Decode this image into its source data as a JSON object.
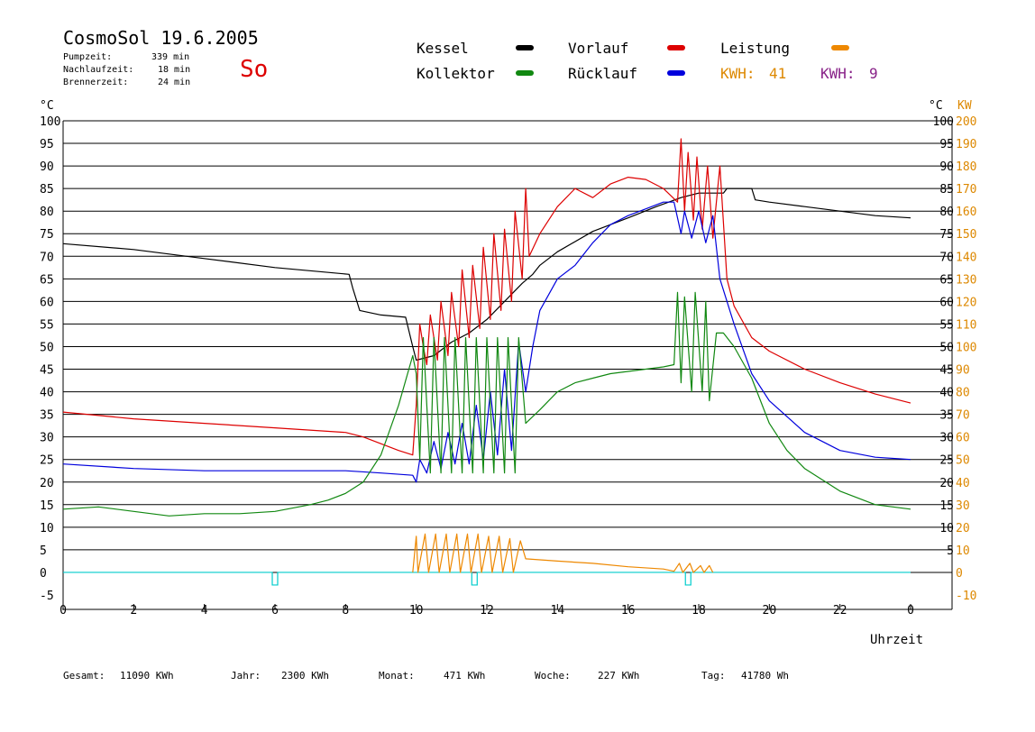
{
  "header": {
    "title": "CosmoSol 19.6.2005",
    "day": "So",
    "info": [
      {
        "label": "Pumpzeit:",
        "value": "339 min"
      },
      {
        "label": "Nachlaufzeit:",
        "value": "18 min"
      },
      {
        "label": "Brennerzeit:",
        "value": "24 min"
      }
    ]
  },
  "legend": {
    "kessel": {
      "label": "Kessel",
      "color": "#000000"
    },
    "vorlauf": {
      "label": "Vorlauf",
      "color": "#dd0000"
    },
    "leistung": {
      "label": "Leistung",
      "color": "#ee8800"
    },
    "kollektor": {
      "label": "Kollektor",
      "color": "#118811"
    },
    "ruecklauf": {
      "label": "Rücklauf",
      "color": "#0000dd"
    },
    "kwh_orange": {
      "label": "KWH:",
      "value": "41",
      "color": "#dd8800"
    },
    "kwh_purple": {
      "label": "KWH:",
      "value": "9",
      "color": "#882288"
    }
  },
  "axes": {
    "left_unit": "°C",
    "right_unit_c": "°C",
    "right_unit_kw": "KW",
    "x_label": "Uhrzeit"
  },
  "footer": [
    {
      "label": "Gesamt:",
      "value": "11090 KWh"
    },
    {
      "label": "Jahr:",
      "value": "2300 KWh"
    },
    {
      "label": "Monat:",
      "value": "471 KWh"
    },
    {
      "label": "Woche:",
      "value": "227 KWh"
    },
    {
      "label": "Tag:",
      "value": "41780 Wh"
    }
  ],
  "chart_data": {
    "type": "line",
    "xlabel": "Uhrzeit",
    "ylabel_left": "°C",
    "ylabel_right": "KW",
    "xlim": [
      0,
      24
    ],
    "ylim": [
      -5,
      100
    ],
    "ylim_kw": [
      -10,
      200
    ],
    "x_ticks": [
      "0",
      "2",
      "4",
      "6",
      "8",
      "10",
      "12",
      "14",
      "16",
      "18",
      "20",
      "22",
      "0"
    ],
    "y_ticks_left": [
      "100",
      "95",
      "90",
      "85",
      "80",
      "75",
      "70",
      "65",
      "60",
      "55",
      "50",
      "45",
      "40",
      "35",
      "30",
      "25",
      "20",
      "15",
      "10",
      "5",
      "0",
      "-5"
    ],
    "y_ticks_right_c": [
      "100",
      "95",
      "90",
      "85",
      "80",
      "75",
      "70",
      "65",
      "60",
      "55",
      "50",
      "45",
      "40",
      "35",
      "30",
      "25",
      "20",
      "15",
      "10",
      "5"
    ],
    "y_ticks_right_kw": [
      "200",
      "190",
      "180",
      "170",
      "160",
      "150",
      "140",
      "130",
      "120",
      "110",
      "100",
      "90",
      "80",
      "70",
      "60",
      "50",
      "40",
      "30",
      "20",
      "10",
      "0",
      "-10"
    ],
    "grid": true,
    "series": [
      {
        "name": "Kessel",
        "color": "#000000",
        "points": [
          [
            0,
            72.8
          ],
          [
            2,
            71.5
          ],
          [
            4,
            69.5
          ],
          [
            6,
            67.5
          ],
          [
            8.1,
            66
          ],
          [
            8.2,
            63
          ],
          [
            8.4,
            58
          ],
          [
            9,
            57
          ],
          [
            9.7,
            56.5
          ],
          [
            9.9,
            50
          ],
          [
            10,
            47
          ],
          [
            10.5,
            48
          ],
          [
            11,
            51
          ],
          [
            11.5,
            53
          ],
          [
            12,
            56
          ],
          [
            12.5,
            60
          ],
          [
            13,
            64
          ],
          [
            13.3,
            66
          ],
          [
            13.5,
            68
          ],
          [
            14,
            71
          ],
          [
            15,
            75.5
          ],
          [
            16,
            78.5
          ],
          [
            16.8,
            81
          ],
          [
            17.5,
            83
          ],
          [
            18,
            84
          ],
          [
            18.7,
            84
          ],
          [
            18.8,
            85
          ],
          [
            19.5,
            85
          ],
          [
            19.6,
            82.5
          ],
          [
            20,
            82
          ],
          [
            21,
            81
          ],
          [
            22,
            80
          ],
          [
            23,
            79
          ],
          [
            24,
            78.5
          ]
        ]
      },
      {
        "name": "Vorlauf",
        "color": "#dd0000",
        "points": [
          [
            0,
            35.5
          ],
          [
            2,
            34
          ],
          [
            4,
            33
          ],
          [
            6,
            32
          ],
          [
            8,
            31
          ],
          [
            8.5,
            30
          ],
          [
            9,
            28.5
          ],
          [
            9.5,
            27
          ],
          [
            9.9,
            26
          ],
          [
            10,
            37
          ],
          [
            10.1,
            55
          ],
          [
            10.2,
            50
          ],
          [
            10.3,
            46
          ],
          [
            10.4,
            57
          ],
          [
            10.6,
            47
          ],
          [
            10.7,
            60
          ],
          [
            10.9,
            48
          ],
          [
            11,
            62
          ],
          [
            11.2,
            50
          ],
          [
            11.3,
            67
          ],
          [
            11.5,
            52
          ],
          [
            11.6,
            68
          ],
          [
            11.8,
            54
          ],
          [
            11.9,
            72
          ],
          [
            12.1,
            56
          ],
          [
            12.2,
            75
          ],
          [
            12.4,
            58
          ],
          [
            12.5,
            76
          ],
          [
            12.7,
            60
          ],
          [
            12.8,
            80
          ],
          [
            13,
            65
          ],
          [
            13.1,
            85
          ],
          [
            13.2,
            70
          ],
          [
            13.5,
            75
          ],
          [
            14,
            81
          ],
          [
            14.5,
            85
          ],
          [
            15,
            83
          ],
          [
            15.5,
            86
          ],
          [
            16,
            87.5
          ],
          [
            16.5,
            87
          ],
          [
            17,
            85
          ],
          [
            17.4,
            82
          ],
          [
            17.5,
            96
          ],
          [
            17.6,
            80
          ],
          [
            17.7,
            93
          ],
          [
            17.85,
            78
          ],
          [
            17.95,
            92
          ],
          [
            18.1,
            76
          ],
          [
            18.25,
            90
          ],
          [
            18.4,
            74
          ],
          [
            18.6,
            90
          ],
          [
            18.8,
            65
          ],
          [
            19,
            59
          ],
          [
            19.5,
            52
          ],
          [
            20,
            49
          ],
          [
            21,
            45
          ],
          [
            22,
            42
          ],
          [
            23,
            39.5
          ],
          [
            24,
            37.5
          ]
        ]
      },
      {
        "name": "Rücklauf",
        "color": "#0000dd",
        "points": [
          [
            0,
            24
          ],
          [
            2,
            23
          ],
          [
            4,
            22.5
          ],
          [
            6,
            22.5
          ],
          [
            8,
            22.5
          ],
          [
            9,
            22
          ],
          [
            9.9,
            21.5
          ],
          [
            10,
            20
          ],
          [
            10.1,
            25
          ],
          [
            10.3,
            22
          ],
          [
            10.5,
            29
          ],
          [
            10.7,
            23
          ],
          [
            10.9,
            31
          ],
          [
            11.1,
            24
          ],
          [
            11.3,
            33
          ],
          [
            11.5,
            24
          ],
          [
            11.7,
            37
          ],
          [
            11.9,
            25
          ],
          [
            12.1,
            40
          ],
          [
            12.3,
            26
          ],
          [
            12.5,
            45
          ],
          [
            12.7,
            27
          ],
          [
            12.9,
            51
          ],
          [
            13.1,
            40
          ],
          [
            13.3,
            50
          ],
          [
            13.5,
            58
          ],
          [
            14,
            65
          ],
          [
            14.5,
            68
          ],
          [
            15,
            73
          ],
          [
            15.5,
            77
          ],
          [
            16,
            79
          ],
          [
            16.5,
            80.5
          ],
          [
            17,
            82
          ],
          [
            17.3,
            82
          ],
          [
            17.5,
            75
          ],
          [
            17.6,
            80
          ],
          [
            17.8,
            74
          ],
          [
            18,
            80
          ],
          [
            18.2,
            73
          ],
          [
            18.4,
            79
          ],
          [
            18.6,
            65
          ],
          [
            19,
            55
          ],
          [
            19.5,
            44
          ],
          [
            20,
            38
          ],
          [
            21,
            31
          ],
          [
            22,
            27
          ],
          [
            23,
            25.5
          ],
          [
            24,
            25
          ]
        ]
      },
      {
        "name": "Kollektor",
        "color": "#118811",
        "points": [
          [
            0,
            14
          ],
          [
            1,
            14.5
          ],
          [
            2,
            13.5
          ],
          [
            3,
            12.5
          ],
          [
            4,
            13
          ],
          [
            5,
            13
          ],
          [
            6,
            13.5
          ],
          [
            7,
            15
          ],
          [
            7.5,
            16
          ],
          [
            8,
            17.5
          ],
          [
            8.5,
            20
          ],
          [
            9,
            26
          ],
          [
            9.5,
            37
          ],
          [
            9.9,
            48
          ],
          [
            10,
            44
          ],
          [
            10.1,
            25
          ],
          [
            10.2,
            52
          ],
          [
            10.4,
            22
          ],
          [
            10.5,
            52
          ],
          [
            10.7,
            22
          ],
          [
            10.8,
            52
          ],
          [
            11,
            22
          ],
          [
            11.1,
            52
          ],
          [
            11.3,
            22
          ],
          [
            11.4,
            52
          ],
          [
            11.6,
            22
          ],
          [
            11.7,
            52
          ],
          [
            11.9,
            22
          ],
          [
            12,
            52
          ],
          [
            12.2,
            22
          ],
          [
            12.3,
            52
          ],
          [
            12.5,
            22
          ],
          [
            12.6,
            52
          ],
          [
            12.8,
            22
          ],
          [
            12.9,
            52
          ],
          [
            13.1,
            33
          ],
          [
            13.5,
            36
          ],
          [
            14,
            40
          ],
          [
            14.5,
            42
          ],
          [
            15,
            43
          ],
          [
            15.5,
            44
          ],
          [
            16,
            44.5
          ],
          [
            16.5,
            45
          ],
          [
            17,
            45.5
          ],
          [
            17.3,
            46
          ],
          [
            17.4,
            62
          ],
          [
            17.5,
            42
          ],
          [
            17.6,
            61
          ],
          [
            17.8,
            40
          ],
          [
            17.9,
            62
          ],
          [
            18.1,
            40
          ],
          [
            18.2,
            60
          ],
          [
            18.3,
            38
          ],
          [
            18.5,
            53
          ],
          [
            18.7,
            53
          ],
          [
            19,
            50
          ],
          [
            19.5,
            43
          ],
          [
            20,
            33
          ],
          [
            20.5,
            27
          ],
          [
            21,
            23
          ],
          [
            22,
            18
          ],
          [
            23,
            15
          ],
          [
            24,
            14
          ]
        ]
      },
      {
        "name": "Leistung",
        "color": "#ee8800",
        "axis": "kw",
        "points": [
          [
            9.9,
            0
          ],
          [
            10,
            16
          ],
          [
            10.05,
            0
          ],
          [
            10.25,
            17
          ],
          [
            10.35,
            0
          ],
          [
            10.55,
            17
          ],
          [
            10.65,
            0
          ],
          [
            10.85,
            17
          ],
          [
            10.95,
            0
          ],
          [
            11.15,
            17
          ],
          [
            11.25,
            0
          ],
          [
            11.45,
            17
          ],
          [
            11.55,
            0
          ],
          [
            11.75,
            17
          ],
          [
            11.85,
            0
          ],
          [
            12.05,
            16
          ],
          [
            12.15,
            0
          ],
          [
            12.35,
            16
          ],
          [
            12.45,
            0
          ],
          [
            12.65,
            15
          ],
          [
            12.75,
            0
          ],
          [
            12.95,
            14
          ],
          [
            13.1,
            6
          ],
          [
            14,
            5
          ],
          [
            15,
            4
          ],
          [
            16,
            2.5
          ],
          [
            17,
            1.5
          ],
          [
            17.3,
            0.5
          ],
          [
            17.45,
            4
          ],
          [
            17.55,
            0
          ],
          [
            17.75,
            4
          ],
          [
            17.85,
            0
          ],
          [
            18.05,
            3
          ],
          [
            18.15,
            0
          ],
          [
            18.3,
            3
          ],
          [
            18.4,
            0
          ]
        ]
      }
    ]
  }
}
